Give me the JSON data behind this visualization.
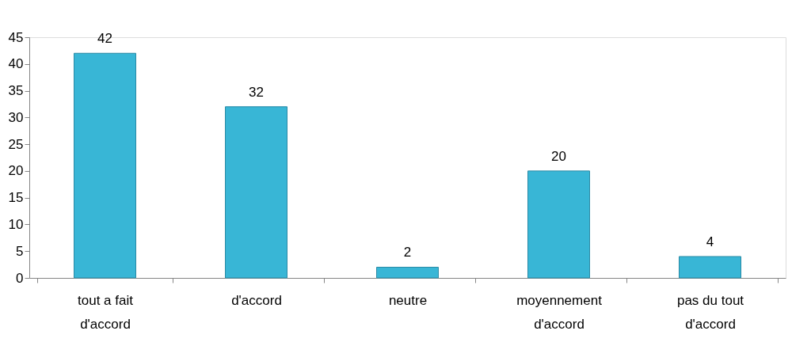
{
  "chart_data": {
    "type": "bar",
    "categories": [
      "tout a fait\nd'accord",
      "d'accord",
      "neutre",
      "moyennement\nd'accord",
      "pas du tout\nd'accord"
    ],
    "values": [
      42,
      32,
      2,
      20,
      4
    ],
    "color": "#38b6d6",
    "ylim": [
      0,
      45
    ],
    "yticks": [
      0,
      5,
      10,
      15,
      20,
      25,
      30,
      35,
      40,
      45
    ],
    "data_labels": true,
    "grid": false
  }
}
